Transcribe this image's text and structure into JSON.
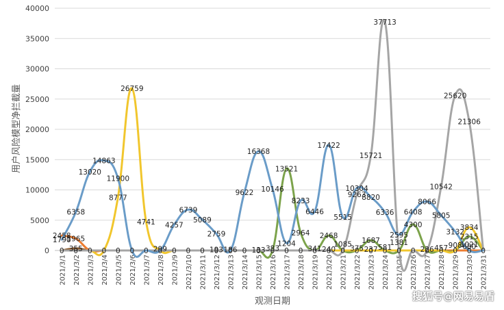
{
  "chart_data": {
    "type": "line",
    "xlabel": "观测日期",
    "ylabel": "用户风险模型净拦截量",
    "ylim": [
      0,
      40000
    ],
    "yticks": [
      0,
      5000,
      10000,
      15000,
      20000,
      25000,
      30000,
      35000,
      40000
    ],
    "grid": "horizontal",
    "categories": [
      "2021/3/1",
      "2021/3/2",
      "2021/3/3",
      "2021/3/4",
      "2021/3/5",
      "2021/3/6",
      "2021/3/7",
      "2021/3/8",
      "2021/3/9",
      "2021/3/10",
      "2021/3/11",
      "2021/3/12",
      "2021/3/13",
      "2021/3/14",
      "2021/3/15",
      "2021/3/16",
      "2021/3/17",
      "2021/3/18",
      "2021/3/19",
      "2021/3/20",
      "2021/3/21",
      "2021/3/22",
      "2021/3/23",
      "2021/3/24",
      "2021/3/25",
      "2021/3/26",
      "2021/3/27",
      "2021/3/28",
      "2021/3/29",
      "2021/3/30",
      "2021/3/31"
    ],
    "series": [
      {
        "color": "#6a9cc8",
        "values": [
          1790,
          6358,
          13020,
          14863,
          11900,
          0,
          0,
          0,
          4257,
          6739,
          5089,
          2759,
          0,
          9622,
          16368,
          10146,
          1204,
          8233,
          6446,
          17422,
          5515,
          10304,
          8820,
          6336,
          2595,
          6408,
          8066,
          5805,
          3132,
          0,
          0
        ]
      },
      {
        "color": "#f1c62d",
        "values": [
          0,
          0,
          0,
          0,
          8777,
          26759,
          4741,
          0,
          0,
          0,
          0,
          0,
          0,
          0,
          0,
          0,
          0,
          0,
          0,
          0,
          0,
          0,
          0,
          0,
          0,
          0,
          0,
          0,
          0,
          3834,
          0
        ]
      },
      {
        "color": "#a5a5a5",
        "values": [
          0,
          0,
          0,
          0,
          0,
          0,
          0,
          0,
          0,
          0,
          0,
          0,
          0,
          0,
          0,
          0,
          0,
          0,
          0,
          0,
          0,
          9263,
          15721,
          37713,
          0,
          0,
          0,
          10542,
          25620,
          21306,
          0
        ]
      },
      {
        "color": "#7ca34b",
        "values": [
          0,
          0,
          0,
          0,
          0,
          0,
          0,
          0,
          0,
          0,
          0,
          0,
          0,
          0,
          0,
          0,
          13521,
          2964,
          0,
          2468,
          0,
          0,
          1687,
          0,
          0,
          4300,
          0,
          0,
          0,
          2315,
          0
        ]
      },
      {
        "color": "#ed7d31",
        "values": [
          2458,
          1965,
          0,
          0,
          0,
          0,
          0,
          0,
          0,
          0,
          0,
          0,
          0,
          0,
          0,
          0,
          0,
          0,
          0,
          0,
          0,
          0,
          0,
          0,
          0,
          0,
          0,
          0,
          0,
          0,
          0
        ]
      },
      {
        "color": "#8b5a2b",
        "values": [
          0,
          355,
          0,
          0,
          0,
          0,
          0,
          0,
          0,
          0,
          0,
          0,
          0,
          0,
          0,
          0,
          0,
          0,
          0,
          0,
          0,
          0,
          0,
          0,
          0,
          0,
          0,
          0,
          0,
          0,
          0
        ]
      }
    ],
    "data_labels": [
      {
        "x": "2021/3/1",
        "text": "2458",
        "value": 2458
      },
      {
        "x": "2021/3/1",
        "text": "1790",
        "value": 1790
      },
      {
        "x": "2021/3/2",
        "text": "1965",
        "value": 1965
      },
      {
        "x": "2021/3/2",
        "text": "355",
        "value": 355
      },
      {
        "x": "2021/3/2",
        "text": "6358",
        "value": 6358
      },
      {
        "x": "2021/3/3",
        "text": "13020",
        "value": 13020
      },
      {
        "x": "2021/3/4",
        "text": "14863",
        "value": 14863
      },
      {
        "x": "2021/3/5",
        "text": "11900",
        "value": 11900
      },
      {
        "x": "2021/3/5",
        "text": "8777",
        "value": 8777
      },
      {
        "x": "2021/3/6",
        "text": "26759",
        "value": 26759
      },
      {
        "x": "2021/3/7",
        "text": "4741",
        "value": 4741
      },
      {
        "x": "2021/3/8",
        "text": "299",
        "value": 299
      },
      {
        "x": "2021/3/9",
        "text": "4257",
        "value": 4257
      },
      {
        "x": "2021/3/10",
        "text": "6739",
        "value": 6739
      },
      {
        "x": "2021/3/11",
        "text": "5089",
        "value": 5089
      },
      {
        "x": "2021/3/12",
        "text": "2759",
        "value": 2759
      },
      {
        "x": "2021/3/12",
        "text": "193",
        "value": 193
      },
      {
        "x": "2021/3/13",
        "text": "186",
        "value": 186
      },
      {
        "x": "2021/3/14",
        "text": "9622",
        "value": 9622
      },
      {
        "x": "2021/3/15",
        "text": "16368",
        "value": 16368
      },
      {
        "x": "2021/3/15",
        "text": "133",
        "value": 133
      },
      {
        "x": "2021/3/16",
        "text": "10146",
        "value": 10146
      },
      {
        "x": "2021/3/16",
        "text": "383",
        "value": 383
      },
      {
        "x": "2021/3/17",
        "text": "13521",
        "value": 13521
      },
      {
        "x": "2021/3/17",
        "text": "1204",
        "value": 1204
      },
      {
        "x": "2021/3/18",
        "text": "8233",
        "value": 8233
      },
      {
        "x": "2021/3/18",
        "text": "2964",
        "value": 2964
      },
      {
        "x": "2021/3/19",
        "text": "6446",
        "value": 6446
      },
      {
        "x": "2021/3/19",
        "text": "341",
        "value": 341
      },
      {
        "x": "2021/3/20",
        "text": "17422",
        "value": 17422
      },
      {
        "x": "2021/3/20",
        "text": "2468",
        "value": 2468
      },
      {
        "x": "2021/3/20",
        "text": "240",
        "value": 240
      },
      {
        "x": "2021/3/21",
        "text": "5515",
        "value": 5515
      },
      {
        "x": "2021/3/21",
        "text": "1085",
        "value": 1085
      },
      {
        "x": "2021/3/22",
        "text": "10304",
        "value": 10304
      },
      {
        "x": "2021/3/22",
        "text": "9263",
        "value": 9263
      },
      {
        "x": "2021/3/22",
        "text": "375",
        "value": 375
      },
      {
        "x": "2021/3/23",
        "text": "15721",
        "value": 15721
      },
      {
        "x": "2021/3/23",
        "text": "8820",
        "value": 8820
      },
      {
        "x": "2021/3/23",
        "text": "1687",
        "value": 1687
      },
      {
        "x": "2021/3/23",
        "text": "237",
        "value": 237
      },
      {
        "x": "2021/3/24",
        "text": "37713",
        "value": 37713
      },
      {
        "x": "2021/3/24",
        "text": "6336",
        "value": 6336
      },
      {
        "x": "2021/3/24",
        "text": "581",
        "value": 581
      },
      {
        "x": "2021/3/25",
        "text": "2595",
        "value": 2595
      },
      {
        "x": "2021/3/25",
        "text": "1381",
        "value": 1381
      },
      {
        "x": "2021/3/26",
        "text": "6408",
        "value": 6408
      },
      {
        "x": "2021/3/26",
        "text": "4300",
        "value": 4300
      },
      {
        "x": "2021/3/27",
        "text": "8066",
        "value": 8066
      },
      {
        "x": "2021/3/27",
        "text": "226",
        "value": 226
      },
      {
        "x": "2021/3/28",
        "text": "10542",
        "value": 10542
      },
      {
        "x": "2021/3/28",
        "text": "5805",
        "value": 5805
      },
      {
        "x": "2021/3/28",
        "text": "457",
        "value": 457
      },
      {
        "x": "2021/3/29",
        "text": "25620",
        "value": 25620
      },
      {
        "x": "2021/3/29",
        "text": "3132",
        "value": 3132
      },
      {
        "x": "2021/3/29",
        "text": "908",
        "value": 908
      },
      {
        "x": "2021/3/30",
        "text": "21306",
        "value": 21306
      },
      {
        "x": "2021/3/30",
        "text": "3834",
        "value": 3834
      },
      {
        "x": "2021/3/30",
        "text": "2315",
        "value": 2315
      },
      {
        "x": "2021/3/30",
        "text": "1021",
        "value": 1021
      },
      {
        "x": "2021/3/30",
        "text": "680",
        "value": 680
      }
    ]
  },
  "watermark": "搜狐号@网易易盾"
}
